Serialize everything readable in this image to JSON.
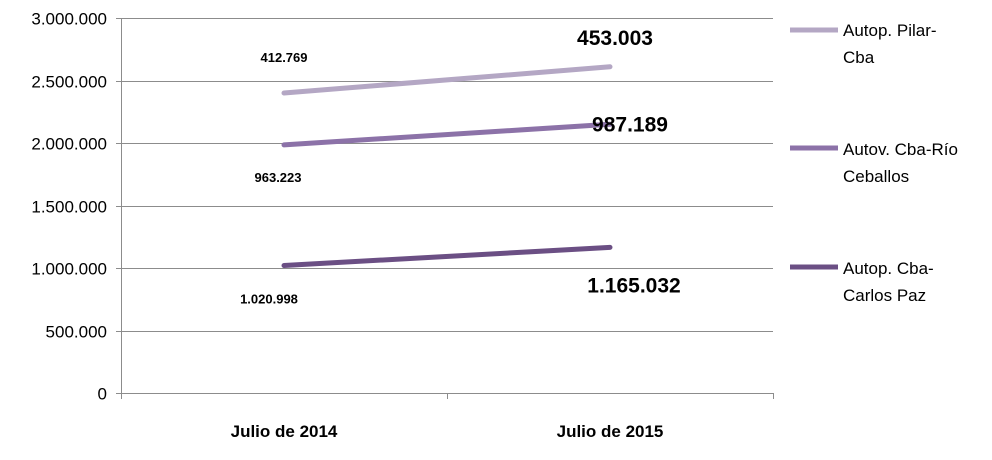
{
  "chart_data": {
    "type": "line",
    "categories": [
      "Julio de 2014",
      "Julio de 2015"
    ],
    "ylim": [
      0,
      3000000
    ],
    "yticks": [
      0,
      500000,
      1000000,
      1500000,
      2000000,
      2500000,
      3000000
    ],
    "ytick_labels": [
      "0",
      "500.000",
      "1.000.000",
      "1.500.000",
      "2.000.000",
      "2.500.000",
      "3.000.000"
    ],
    "grid": true,
    "legend_position": "right",
    "series": [
      {
        "name_lines": [
          "Autop. Pilar-",
          "Cba"
        ],
        "color": "#B4A7C4",
        "values": [
          2400000,
          2610000
        ],
        "labels": [
          "412.769",
          "453.003"
        ]
      },
      {
        "name_lines": [
          "Autov. Cba-Río",
          "Ceballos"
        ],
        "color": "#8C72A8",
        "values": [
          1985000,
          2150000
        ],
        "labels": [
          "963.223",
          "987.189"
        ]
      },
      {
        "name_lines": [
          "Autop. Cba-",
          "Carlos Paz"
        ],
        "color": "#6B4F84",
        "values": [
          1020000,
          1165000
        ],
        "labels": [
          "1.020.998",
          "1.165.032"
        ]
      }
    ]
  }
}
